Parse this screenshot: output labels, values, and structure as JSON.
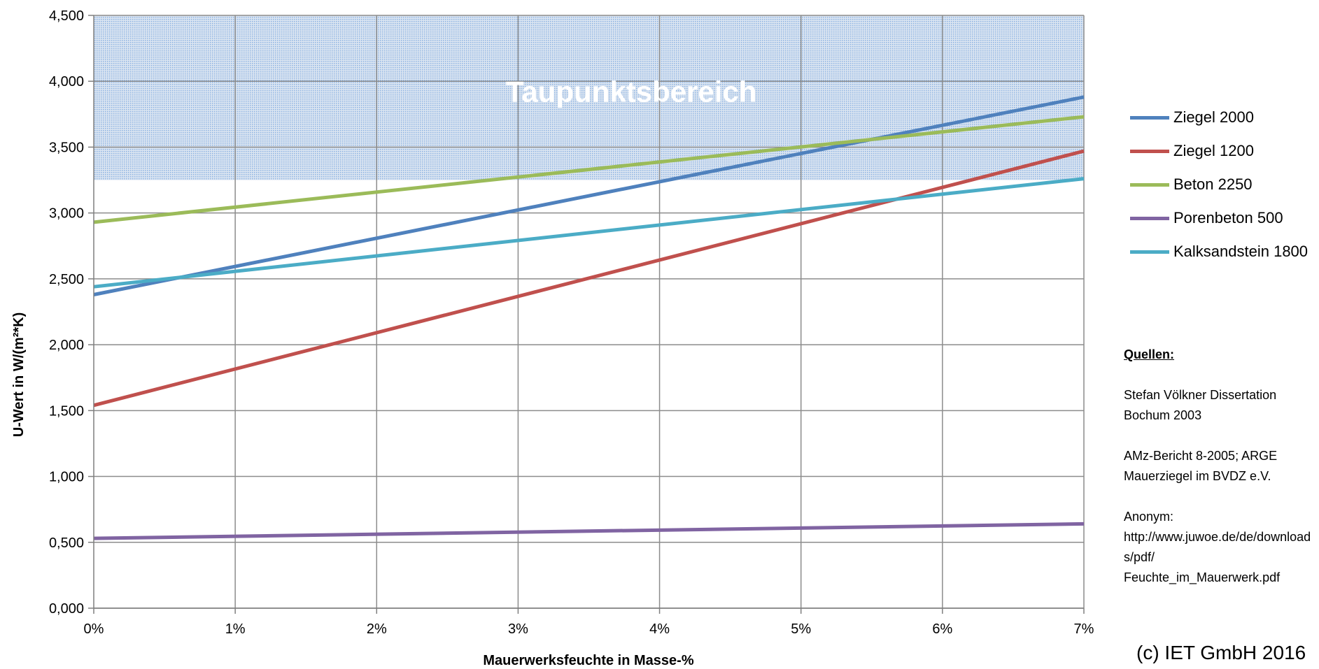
{
  "chart_data": {
    "type": "line",
    "title": "",
    "xlabel": "Mauerwerksfeuchte  in Masse-%",
    "ylabel": "U-Wert  in  W/(m²*K)",
    "xlim": [
      0,
      7
    ],
    "ylim": [
      0,
      4.5
    ],
    "x_ticks": [
      0,
      1,
      2,
      3,
      4,
      5,
      6,
      7
    ],
    "x_tick_labels": [
      "0%",
      "1%",
      "2%",
      "3%",
      "4%",
      "5%",
      "6%",
      "7%"
    ],
    "y_ticks": [
      0,
      0.5,
      1,
      1.5,
      2,
      2.5,
      3,
      3.5,
      4,
      4.5
    ],
    "y_tick_labels": [
      "0,000",
      "0,500",
      "1,000",
      "1,500",
      "2,000",
      "2,500",
      "3,000",
      "3,500",
      "4,000",
      "4,500"
    ],
    "grid": true,
    "legend_position": "right",
    "shaded_region": {
      "label": "Taupunktsbereich",
      "y_from": 3.25,
      "y_to": 4.5,
      "color": "#b8cce4"
    },
    "series": [
      {
        "name": "Ziegel 2000",
        "color": "#4f81bd",
        "x": [
          0,
          7
        ],
        "y": [
          2.38,
          3.88
        ]
      },
      {
        "name": "Ziegel 1200",
        "color": "#c0504d",
        "x": [
          0,
          7
        ],
        "y": [
          1.54,
          3.47
        ]
      },
      {
        "name": "Beton 2250",
        "color": "#9bbb59",
        "x": [
          0,
          7
        ],
        "y": [
          2.93,
          3.73
        ]
      },
      {
        "name": "Porenbeton 500",
        "color": "#8064a2",
        "x": [
          0,
          7
        ],
        "y": [
          0.53,
          0.64
        ]
      },
      {
        "name": "Kalksandstein 1800",
        "color": "#4bacc6",
        "x": [
          0,
          7
        ],
        "y": [
          2.44,
          3.26
        ]
      }
    ]
  },
  "sources": {
    "title": "Quellen:",
    "items": [
      "Stefan Völkner Dissertation\nBochum 2003",
      "AMz-Bericht 8-2005; ARGE\nMauerziegel im BVDZ e.V.",
      "Anonym:\nhttp://www.juwoe.de/de/downloads/pdf/\nFeuchte_im_Mauerwerk.pdf"
    ]
  },
  "copyright": "(c) IET GmbH 2016"
}
